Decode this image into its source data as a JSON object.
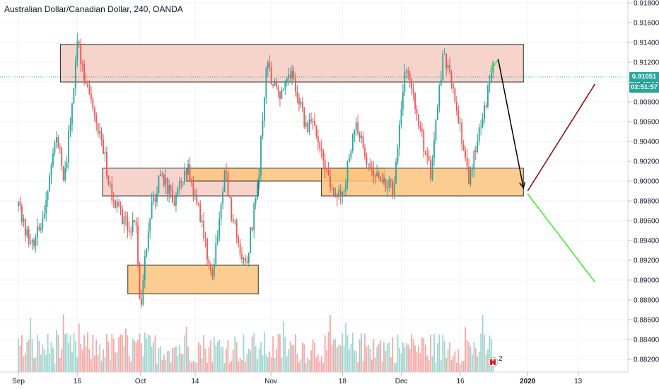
{
  "header": {
    "title": "Australian Dollar/Canadian Dollar, 240, OANDA"
  },
  "price_axis": {
    "current_price": "0.91051",
    "countdown": "02:51:57",
    "current_price_color": "#26a69a",
    "countdown_color": "#26a69a"
  },
  "colors": {
    "up": "#26a69a",
    "down": "#ef5350",
    "volume_up": "#9fd5cf",
    "volume_down": "#f5a7a6",
    "resistance_zone": "#f4cdc3",
    "support_zone": "#fbc47e",
    "arrow_black": "#000000",
    "arrow_darkred": "#8b0000",
    "arrow_green": "#33ee22"
  },
  "icons": {
    "event": "canada-flag-icon"
  },
  "event_badge_count": "2",
  "chart_data": {
    "type": "candlestick",
    "title": "Australian Dollar/Canadian Dollar, 240, OANDA",
    "xlabel": "",
    "ylabel": "",
    "ylim": [
      0.881,
      0.918
    ],
    "x_tick_labels": [
      "Sep",
      "16",
      "Oct",
      "14",
      "Nov",
      "18",
      "Dec",
      "16",
      "2020",
      "13"
    ],
    "y_tick_labels": [
      "0.91800",
      "0.91600",
      "0.91400",
      "0.91200",
      "0.91000",
      "0.90800",
      "0.90600",
      "0.90400",
      "0.90200",
      "0.90000",
      "0.89800",
      "0.89600",
      "0.89400",
      "0.89200",
      "0.89000",
      "0.88800",
      "0.88600",
      "0.88400",
      "0.88200"
    ],
    "close_path": [
      [
        "2019-09-02",
        0.8975
      ],
      [
        "2019-09-05",
        0.893
      ],
      [
        "2019-09-08",
        0.8965
      ],
      [
        "2019-09-11",
        0.905
      ],
      [
        "2019-09-13",
        0.9
      ],
      [
        "2019-09-16",
        0.914
      ],
      [
        "2019-09-19",
        0.908
      ],
      [
        "2019-09-22",
        0.904
      ],
      [
        "2019-09-24",
        0.8985
      ],
      [
        "2019-09-27",
        0.896
      ],
      [
        "2019-09-30",
        0.895
      ],
      [
        "2019-10-01",
        0.887
      ],
      [
        "2019-10-03",
        0.896
      ],
      [
        "2019-10-06",
        0.901
      ],
      [
        "2019-10-09",
        0.8975
      ],
      [
        "2019-10-12",
        0.9015
      ],
      [
        "2019-10-15",
        0.897
      ],
      [
        "2019-10-18",
        0.89
      ],
      [
        "2019-10-21",
        0.901
      ],
      [
        "2019-10-23",
        0.896
      ],
      [
        "2019-10-26",
        0.8912
      ],
      [
        "2019-10-29",
        0.9
      ],
      [
        "2019-10-31",
        0.912
      ],
      [
        "2019-11-03",
        0.908
      ],
      [
        "2019-11-06",
        0.911
      ],
      [
        "2019-11-09",
        0.906
      ],
      [
        "2019-11-12",
        0.905
      ],
      [
        "2019-11-15",
        0.8995
      ],
      [
        "2019-11-18",
        0.8985
      ],
      [
        "2019-11-21",
        0.906
      ],
      [
        "2019-11-24",
        0.902
      ],
      [
        "2019-11-27",
        0.9005
      ],
      [
        "2019-11-30",
        0.899
      ],
      [
        "2019-12-03",
        0.912
      ],
      [
        "2019-12-06",
        0.906
      ],
      [
        "2019-12-09",
        0.9005
      ],
      [
        "2019-12-12",
        0.913
      ],
      [
        "2019-12-15",
        0.908
      ],
      [
        "2019-12-18",
        0.9
      ],
      [
        "2019-12-21",
        0.906
      ],
      [
        "2019-12-24",
        0.912
      ]
    ],
    "zones": [
      {
        "kind": "resistance",
        "from": "2019-09-12",
        "to": "2019-12-31",
        "low": 0.91,
        "high": 0.9138
      },
      {
        "kind": "resistance",
        "from": "2019-09-22",
        "to": "2019-10-29",
        "low": 0.8985,
        "high": 0.9013
      },
      {
        "kind": "support",
        "from": "2019-10-12",
        "to": "2019-11-28",
        "low": 0.9,
        "high": 0.9013
      },
      {
        "kind": "support",
        "from": "2019-11-13",
        "to": "2019-12-31",
        "low": 0.8985,
        "high": 0.9013
      },
      {
        "kind": "support",
        "from": "2019-09-28",
        "to": "2019-10-29",
        "low": 0.8886,
        "high": 0.8915
      }
    ],
    "drawings": [
      {
        "kind": "line",
        "color": "green",
        "from": [
          "2019-12-23",
          0.911
        ],
        "to": [
          "2019-12-25",
          0.9123
        ]
      },
      {
        "kind": "arrow",
        "color": "black",
        "from": [
          "2019-12-25",
          0.9123
        ],
        "to": [
          "2019-12-31",
          0.8993
        ]
      },
      {
        "kind": "line",
        "color": "darkred",
        "from": [
          "2020-01-01",
          0.899
        ],
        "to": [
          "2020-01-17",
          0.9098
        ]
      },
      {
        "kind": "line",
        "color": "green",
        "from": [
          "2020-01-01",
          0.8987
        ],
        "to": [
          "2020-01-17",
          0.8898
        ]
      }
    ]
  }
}
